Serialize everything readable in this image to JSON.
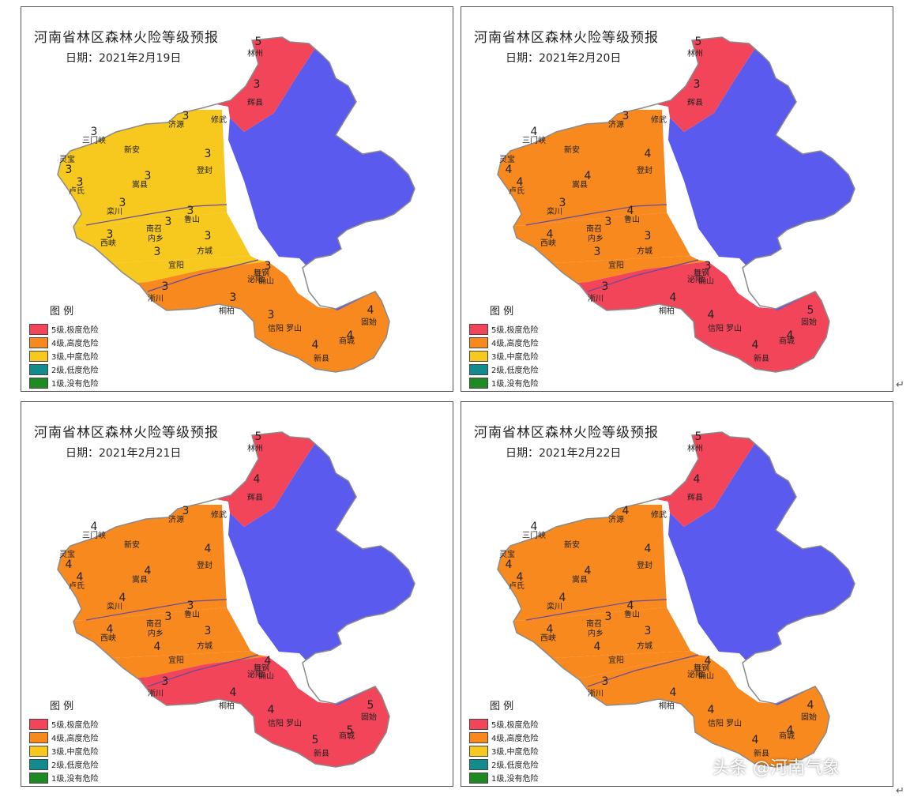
{
  "colors": {
    "extreme": "#f2455a",
    "high": "#f7891f",
    "medium": "#f7c81d",
    "low": "#138a8c",
    "none": "#1e8a22",
    "no_forecast": "#5a5aee",
    "edge": "#8a8a8a"
  },
  "legend": {
    "title": "图  例",
    "items": [
      {
        "key": "extreme",
        "label": "5级,极度危险"
      },
      {
        "key": "high",
        "label": "4级,高度危险"
      },
      {
        "key": "medium",
        "label": "3级,中度危险"
      },
      {
        "key": "low",
        "label": "2级,低度危险"
      },
      {
        "key": "none",
        "label": "1级,没有危险"
      }
    ]
  },
  "cities": [
    "三门峡",
    "灵宝",
    "卢氏",
    "栾川",
    "嵩县",
    "西峡",
    "内乡",
    "淅川",
    "南召",
    "鲁山",
    "方城",
    "桐柏",
    "舞钢",
    "泌阳",
    "确山",
    "信阳",
    "罗山",
    "新县",
    "商城",
    "固始",
    "济源",
    "林州",
    "辉县",
    "修武",
    "新安",
    "登封",
    "宜阳"
  ],
  "panels": [
    {
      "title": "河南省林区森林火险等级预报",
      "date": "日期：2021年2月19日",
      "regions": {
        "north": "extreme",
        "nw_lower": "medium",
        "west": "medium",
        "sw": "medium",
        "south": "high"
      },
      "levels": {
        "lin": "5",
        "hui": "3",
        "jiyuan": "3",
        "sanmenxia": "3",
        "lingbao": "3",
        "lushi": "3",
        "luanchuan": "3",
        "songxian": "3",
        "dengfeng": "3",
        "lushan": "3",
        "neixiang": "3",
        "xixia": "3",
        "fangcheng": "3",
        "zhenping": "3",
        "xichuan": "3",
        "tongbai": "3",
        "queshan": "3",
        "xinyang": "3",
        "shangcheng": "4",
        "gushi": "4",
        "xinxian": "4"
      }
    },
    {
      "title": "河南省林区森林火险等级预报",
      "date": "日期：2021年2月20日",
      "regions": {
        "north": "extreme",
        "nw_lower": "high",
        "west": "high",
        "sw": "high",
        "south": "extreme"
      },
      "levels": {
        "lin": "5",
        "hui": "3",
        "jiyuan": "3",
        "sanmenxia": "4",
        "lingbao": "4",
        "lushi": "4",
        "luanchuan": "3",
        "songxian": "4",
        "dengfeng": "4",
        "lushan": "4",
        "neixiang": "3",
        "xixia": "4",
        "fangcheng": "3",
        "zhenping": "3",
        "xichuan": "3",
        "tongbai": "4",
        "queshan": "3",
        "xinyang": "4",
        "shangcheng": "4",
        "gushi": "5",
        "xinxian": "4"
      }
    },
    {
      "title": "河南省林区森林火险等级预报",
      "date": "日期：2021年2月21日",
      "regions": {
        "north": "extreme",
        "nw_lower": "high",
        "west": "high",
        "sw": "high",
        "south": "extreme"
      },
      "levels": {
        "lin": "5",
        "hui": "4",
        "jiyuan": "3",
        "sanmenxia": "4",
        "lingbao": "4",
        "lushi": "4",
        "luanchuan": "4",
        "songxian": "4",
        "dengfeng": "4",
        "lushan": "3",
        "neixiang": "3",
        "xixia": "4",
        "fangcheng": "3",
        "zhenping": "4",
        "xichuan": "3",
        "tongbai": "4",
        "queshan": "4",
        "xinyang": "4",
        "shangcheng": "5",
        "gushi": "5",
        "xinxian": "5"
      }
    },
    {
      "title": "河南省林区森林火险等级预报",
      "date": "日期：2021年2月22日",
      "regions": {
        "north": "extreme",
        "nw_lower": "high",
        "west": "high",
        "sw": "high",
        "south": "high"
      },
      "levels": {
        "lin": "5",
        "hui": "4",
        "jiyuan": "4",
        "sanmenxia": "4",
        "lingbao": "4",
        "lushi": "4",
        "luanchuan": "4",
        "songxian": "4",
        "dengfeng": "4",
        "lushan": "4",
        "neixiang": "3",
        "xixia": "4",
        "fangcheng": "3",
        "zhenping": "4",
        "xichuan": "3",
        "tongbai": "4",
        "queshan": "4",
        "xinyang": "4",
        "shangcheng": "4",
        "gushi": "4",
        "xinxian": "4"
      }
    }
  ],
  "watermark": "头条 @河南气象",
  "return_mark": "↵"
}
